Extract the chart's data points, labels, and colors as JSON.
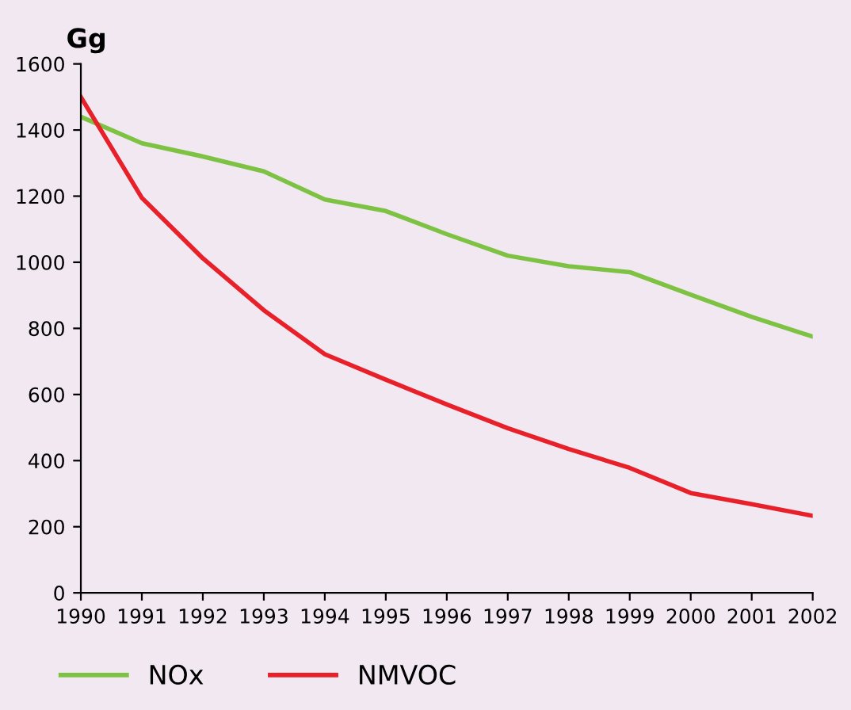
{
  "chart_data": {
    "type": "line",
    "ylabel": "Gg",
    "x": [
      1990,
      1991,
      1992,
      1993,
      1994,
      1995,
      1996,
      1997,
      1998,
      1999,
      2000,
      2001,
      2002
    ],
    "series": [
      {
        "name": "NOx",
        "color": "#7dc242",
        "values": [
          1440,
          1360,
          1320,
          1275,
          1190,
          1155,
          1085,
          1020,
          988,
          970,
          902,
          835,
          775
        ]
      },
      {
        "name": "NMVOC",
        "color": "#e8202a",
        "values": [
          1500,
          1195,
          1012,
          855,
          722,
          645,
          570,
          498,
          435,
          378,
          302,
          268,
          233
        ]
      }
    ],
    "xlim": [
      1990,
      2002
    ],
    "xticks": [
      1990,
      1991,
      1992,
      1993,
      1994,
      1995,
      1996,
      1997,
      1998,
      1999,
      2000,
      2001,
      2002
    ],
    "ylim": [
      0,
      1600
    ],
    "yticks": [
      0,
      200,
      400,
      600,
      800,
      1000,
      1200,
      1400,
      1600
    ],
    "grid": false,
    "legend": "bottom",
    "marker": "none",
    "line_style": "solid"
  }
}
